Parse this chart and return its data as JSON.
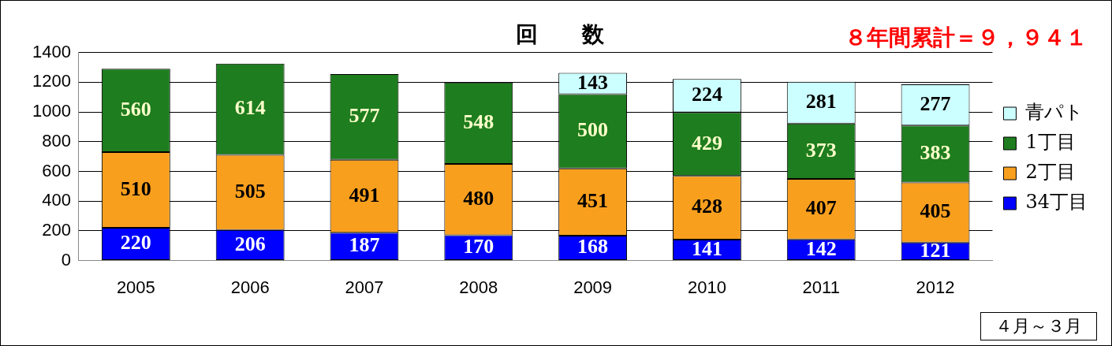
{
  "chart_data": {
    "type": "bar",
    "title": "回　　数",
    "stacked": true,
    "categories": [
      "2005",
      "2006",
      "2007",
      "2008",
      "2009",
      "2010",
      "2011",
      "2012"
    ],
    "series": [
      {
        "name": "34丁目",
        "color": "#0000ff",
        "values": [
          220,
          206,
          187,
          170,
          168,
          141,
          142,
          121
        ]
      },
      {
        "name": "2丁目",
        "color": "#f99f1e",
        "values": [
          510,
          505,
          491,
          480,
          451,
          428,
          407,
          405
        ]
      },
      {
        "name": "1丁目",
        "color": "#1e7d1e",
        "values": [
          560,
          614,
          577,
          548,
          500,
          429,
          373,
          383
        ]
      },
      {
        "name": "青パト",
        "color": "#ccffff",
        "values": [
          null,
          null,
          null,
          null,
          143,
          224,
          281,
          277
        ]
      }
    ],
    "ylim": [
      0,
      1400
    ],
    "yticks": [
      0,
      200,
      400,
      600,
      800,
      1000,
      1200,
      1400
    ],
    "grid": "y",
    "legend": "right",
    "data_labels": true,
    "annotations": [
      "８年間累計＝９，９４１",
      "４月～３月"
    ]
  }
}
